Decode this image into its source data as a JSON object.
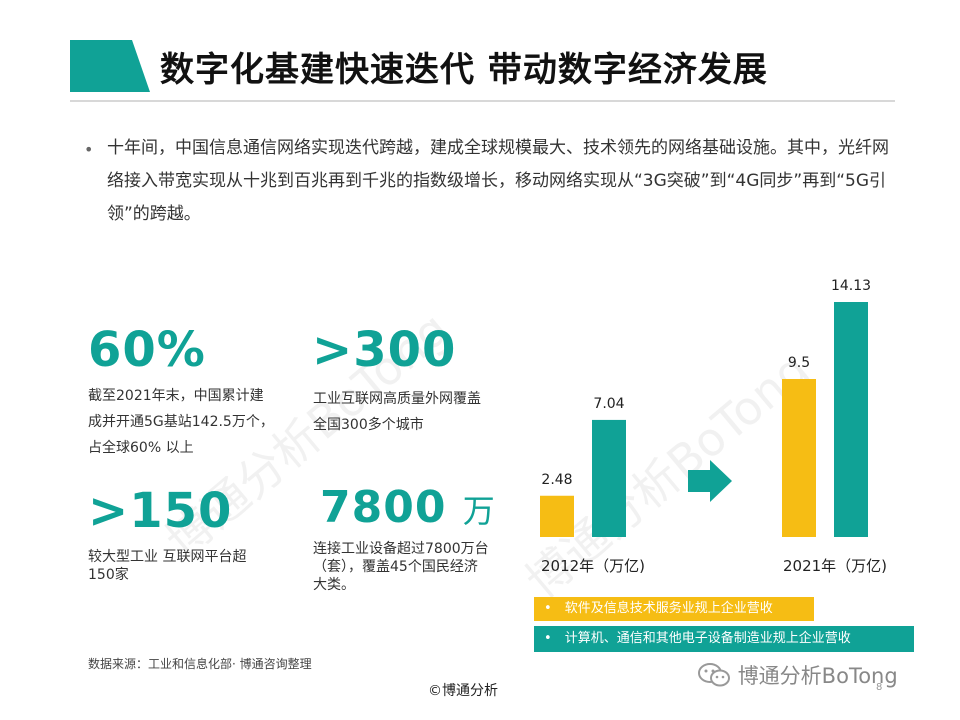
{
  "header": {
    "title": "数字化基建快速迭代 带动数字经济发展"
  },
  "intro": {
    "bullet": "•",
    "text": "十年间，中国信息通信网络实现迭代跨越，建成全球规模最大、技术领先的网络基础设施。其中，光纤网络接入带宽实现从十兆到百兆再到千兆的指数级增长，移动网络实现从“3G突破”到“4G同步”再到“5G引领”的跨越。"
  },
  "stats": [
    {
      "value": "60%",
      "unit": "",
      "desc": "截至2021年末，中国累计建成并开通5G基站142.5万个，占全球60% 以上"
    },
    {
      "value": ">300",
      "unit": "",
      "desc": "工业互联网高质量外网覆盖全国300多个城市"
    },
    {
      "value": ">150",
      "unit": "",
      "desc": "较大型工业 互联网平台超150家"
    },
    {
      "value": "7800",
      "unit": "万",
      "desc": "连接工业设备超过7800万台（套），覆盖45个国民经济大类。"
    }
  ],
  "chart_data": {
    "type": "bar",
    "categories": [
      "2012年（万亿)",
      "2021年（万亿)"
    ],
    "series": [
      {
        "name": "软件及信息技术服务业规上企业营收",
        "values": [
          2.48,
          9.5
        ]
      },
      {
        "name": "计算机、通信和其他电子设备制造业规上企业营收",
        "values": [
          7.04,
          14.13
        ]
      }
    ],
    "colors": [
      "#f6bd14",
      "#10a296"
    ],
    "data_labels": [
      "2.48",
      "7.04",
      "9.5",
      "14.13"
    ],
    "legend_bullet": "•",
    "arrow_icon": "right-arrow-icon",
    "grid": false,
    "legend_position": "bottom"
  },
  "watermarks": [
    "博通分析BoTong",
    "博通分析BoTong"
  ],
  "footer": {
    "source": "数据来源：工业和信息化部· 博通咨询整理",
    "copyright": "©博通分析",
    "page": "8",
    "wechat": "博通分析BoTong"
  },
  "colors": {
    "accent": "#10a296",
    "yellow": "#f6bd14"
  }
}
